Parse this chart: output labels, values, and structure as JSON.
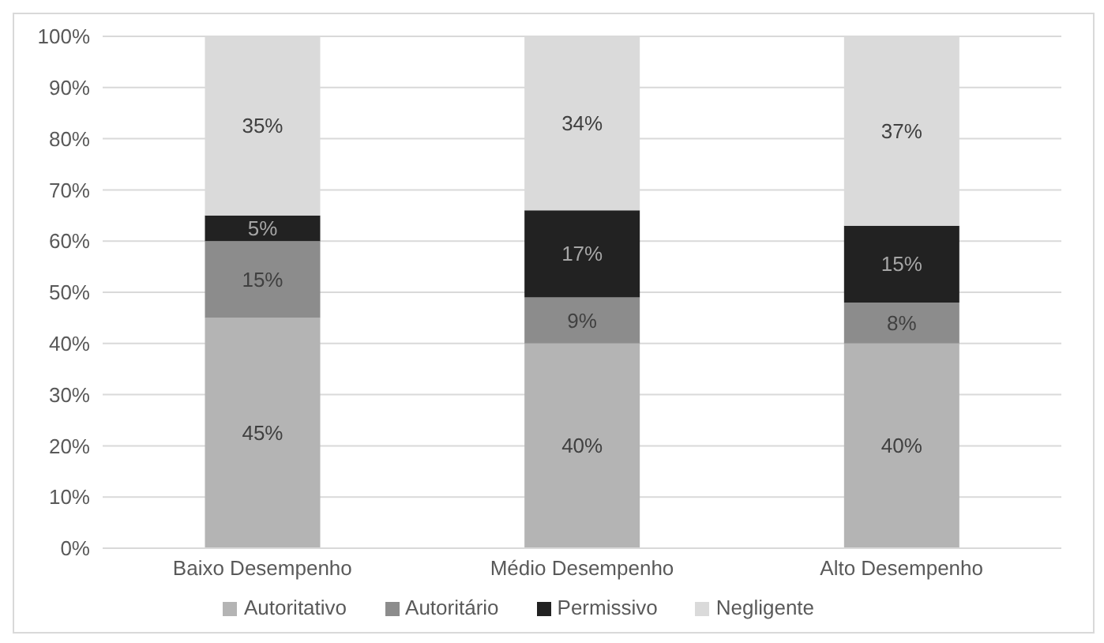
{
  "chart_data": {
    "type": "bar",
    "stacked": true,
    "categories": [
      "Baixo Desempenho",
      "Médio Desempenho",
      "Alto Desempenho"
    ],
    "series": [
      {
        "name": "Autoritativo",
        "color": "#b4b4b4",
        "values": [
          45,
          40,
          40
        ],
        "value_labels": [
          "45%",
          "40%",
          "40%"
        ]
      },
      {
        "name": "Autoritário",
        "color": "#8c8c8c",
        "values": [
          15,
          9,
          8
        ],
        "value_labels": [
          "15%",
          "9%",
          "8%"
        ]
      },
      {
        "name": "Permissivo",
        "color": "#222222",
        "values": [
          5,
          17,
          15
        ],
        "value_labels": [
          "5%",
          "17%",
          "15%"
        ]
      },
      {
        "name": "Negligente",
        "color": "#dadada",
        "values": [
          35,
          34,
          37
        ],
        "value_labels": [
          "35%",
          "34%",
          "37%"
        ]
      }
    ],
    "ylim": [
      0,
      100
    ],
    "yticks": [
      {
        "value": 0,
        "label": "0%"
      },
      {
        "value": 10,
        "label": "10%"
      },
      {
        "value": 20,
        "label": "20%"
      },
      {
        "value": 30,
        "label": "30%"
      },
      {
        "value": 40,
        "label": "40%"
      },
      {
        "value": 50,
        "label": "50%"
      },
      {
        "value": 60,
        "label": "60%"
      },
      {
        "value": 70,
        "label": "70%"
      },
      {
        "value": 80,
        "label": "80%"
      },
      {
        "value": 90,
        "label": "90%"
      },
      {
        "value": 100,
        "label": "100%"
      }
    ],
    "grid": "y",
    "legend": "bottom"
  }
}
